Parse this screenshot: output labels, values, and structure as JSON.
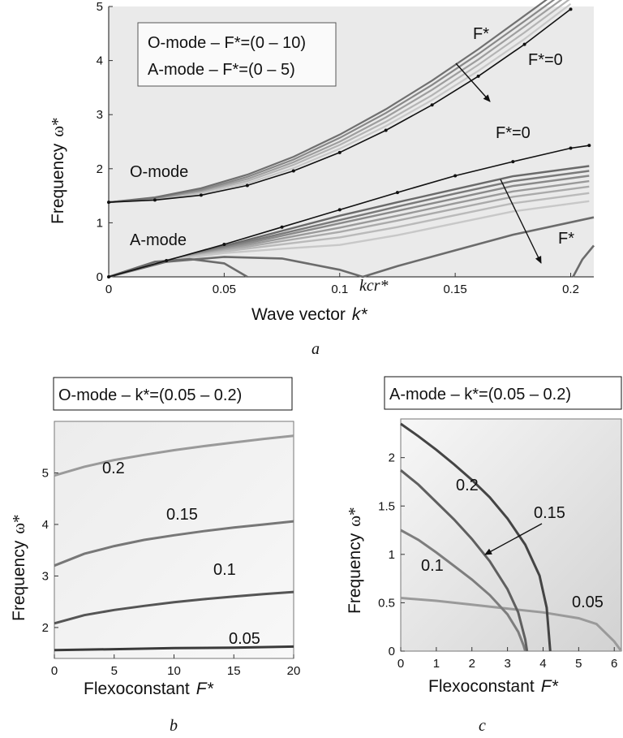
{
  "chart_data": [
    {
      "type": "line",
      "panel": "a",
      "caption": "a",
      "xlabel": "Wave vector",
      "xlabel_sym": "k*",
      "ylabel": "Frequency",
      "ylabel_sym": "ω*",
      "xlim": [
        0,
        0.21
      ],
      "ylim": [
        0,
        5
      ],
      "xticks": [
        "0",
        "0.05",
        "0.1",
        "0.15",
        "0.2"
      ],
      "xtick_values": [
        0,
        0.05,
        0.1,
        0.15,
        0.2
      ],
      "yticks": [
        "0",
        "1",
        "2",
        "3",
        "4",
        "5"
      ],
      "ytick_values": [
        0,
        1,
        2,
        3,
        4,
        5
      ],
      "grid": false,
      "legend_box": {
        "line1": "O-mode – F*=(0 – 10)",
        "line2": "A-mode – F*=(0 – 5)",
        "placement": "top-left"
      },
      "annotations": {
        "o_mode": "O-mode",
        "a_mode": "A-mode",
        "f_star_top": "F*",
        "f_zero_top": "F*=0",
        "f_zero_mid": "F*=0",
        "f_star_bottom": "F*",
        "k_cr": "kcr*"
      },
      "o_mode_F0": {
        "x": [
          0,
          0.02,
          0.04,
          0.06,
          0.08,
          0.1,
          0.12,
          0.14,
          0.16,
          0.18,
          0.2
        ],
        "y": [
          1.38,
          1.42,
          1.51,
          1.69,
          1.96,
          2.3,
          2.71,
          3.18,
          3.71,
          4.3,
          4.95
        ]
      },
      "o_mode_F_family": {
        "F": [
          2,
          4,
          6,
          8,
          10
        ],
        "x": [
          0,
          0.02,
          0.04,
          0.06,
          0.08,
          0.1,
          0.12,
          0.14,
          0.16,
          0.18,
          0.2
        ],
        "y_by_F": [
          [
            1.38,
            1.43,
            1.54,
            1.73,
            2.01,
            2.37,
            2.79,
            3.27,
            3.81,
            4.4,
            5.05
          ],
          [
            1.38,
            1.44,
            1.57,
            1.77,
            2.07,
            2.44,
            2.87,
            3.36,
            3.92,
            4.52,
            5.15
          ],
          [
            1.38,
            1.45,
            1.59,
            1.81,
            2.12,
            2.5,
            2.95,
            3.46,
            4.02,
            4.63,
            5.25
          ],
          [
            1.38,
            1.46,
            1.61,
            1.85,
            2.17,
            2.57,
            3.03,
            3.55,
            4.12,
            4.73,
            5.35
          ],
          [
            1.38,
            1.47,
            1.64,
            1.89,
            2.22,
            2.63,
            3.1,
            3.63,
            4.21,
            4.83,
            5.45
          ]
        ]
      },
      "a_mode_F0": {
        "x": [
          0,
          0.025,
          0.05,
          0.075,
          0.1,
          0.125,
          0.15,
          0.175,
          0.2,
          0.208
        ],
        "y": [
          0,
          0.3,
          0.6,
          0.92,
          1.24,
          1.56,
          1.87,
          2.13,
          2.38,
          2.43
        ]
      },
      "a_mode_F_family": {
        "x": [
          0,
          0.025,
          0.05,
          0.075,
          0.1,
          0.125,
          0.15,
          0.175,
          0.208
        ],
        "y_by_F": [
          [
            0,
            0.3,
            0.57,
            0.85,
            1.13,
            1.38,
            1.62,
            1.86,
            2.05
          ],
          [
            0,
            0.3,
            0.55,
            0.8,
            1.05,
            1.3,
            1.54,
            1.77,
            1.96
          ],
          [
            0,
            0.3,
            0.53,
            0.76,
            0.99,
            1.22,
            1.45,
            1.68,
            1.87
          ],
          [
            0,
            0.3,
            0.51,
            0.71,
            0.91,
            1.13,
            1.36,
            1.58,
            1.77
          ],
          [
            0,
            0.3,
            0.49,
            0.66,
            0.83,
            1.04,
            1.26,
            1.48,
            1.67
          ],
          [
            0,
            0.3,
            0.47,
            0.6,
            0.73,
            0.92,
            1.14,
            1.36,
            1.55
          ],
          [
            0,
            0.3,
            0.44,
            0.52,
            0.59,
            0.77,
            0.99,
            1.21,
            1.4
          ]
        ]
      },
      "a_mode_branches": [
        {
          "x": [
            0,
            0.02,
            0.035,
            0.05,
            0.06
          ],
          "y": [
            0,
            0.28,
            0.33,
            0.25,
            0
          ]
        },
        {
          "x": [
            0,
            0.025,
            0.05,
            0.075,
            0.1,
            0.11,
            0.125,
            0.15,
            0.175,
            0.21
          ],
          "y": [
            0,
            0.28,
            0.37,
            0.34,
            0.13,
            0,
            0.2,
            0.49,
            0.78,
            1.1
          ]
        },
        {
          "x": [
            0.201,
            0.205,
            0.21
          ],
          "y": [
            0,
            0.32,
            0.58
          ]
        }
      ]
    },
    {
      "type": "line",
      "panel": "b",
      "caption": "b",
      "title": "O-mode – k*=(0.05 – 0.2)",
      "xlabel": "Flexoconstant",
      "xlabel_sym": "F*",
      "ylabel": "Frequency",
      "ylabel_sym": "ω*",
      "xlim": [
        0,
        20
      ],
      "ylim": [
        1.4,
        6
      ],
      "xticks": [
        "0",
        "5",
        "10",
        "15",
        "20"
      ],
      "xtick_values": [
        0,
        5,
        10,
        15,
        20
      ],
      "yticks": [
        "2",
        "3",
        "4",
        "5"
      ],
      "ytick_values": [
        2,
        3,
        4,
        5
      ],
      "grid": false,
      "series": [
        {
          "name": "0.05",
          "x": [
            0,
            5,
            10,
            15,
            20
          ],
          "y": [
            1.56,
            1.58,
            1.6,
            1.61,
            1.63
          ]
        },
        {
          "name": "0.1",
          "x": [
            0,
            2.5,
            5,
            7.5,
            10,
            12.5,
            15,
            17.5,
            20
          ],
          "y": [
            2.08,
            2.24,
            2.34,
            2.42,
            2.49,
            2.55,
            2.6,
            2.65,
            2.69
          ]
        },
        {
          "name": "0.15",
          "x": [
            0,
            2.5,
            5,
            7.5,
            10,
            12.5,
            15,
            17.5,
            20
          ],
          "y": [
            3.2,
            3.43,
            3.58,
            3.7,
            3.79,
            3.87,
            3.94,
            4.0,
            4.06
          ]
        },
        {
          "name": "0.2",
          "x": [
            0,
            2.5,
            5,
            7.5,
            10,
            12.5,
            15,
            17.5,
            20
          ],
          "y": [
            4.95,
            5.12,
            5.25,
            5.35,
            5.44,
            5.52,
            5.59,
            5.66,
            5.72
          ]
        }
      ]
    },
    {
      "type": "line",
      "panel": "c",
      "caption": "c",
      "title": "A-mode – k*=(0.05 – 0.2)",
      "xlabel": "Flexoconstant",
      "xlabel_sym": "F*",
      "ylabel": "Frequency",
      "ylabel_sym": "ω*",
      "xlim": [
        0,
        6.2
      ],
      "ylim": [
        0,
        2.4
      ],
      "xticks": [
        "0",
        "1",
        "2",
        "3",
        "4",
        "5",
        "6"
      ],
      "xtick_values": [
        0,
        1,
        2,
        3,
        4,
        5,
        6
      ],
      "yticks": [
        "0",
        "0.5",
        "1",
        "1.5",
        "2"
      ],
      "ytick_values": [
        0,
        0.5,
        1,
        1.5,
        2
      ],
      "grid": false,
      "series": [
        {
          "name": "0.05",
          "x": [
            0,
            1,
            2,
            3,
            4,
            5,
            5.5,
            6.0,
            6.2
          ],
          "y": [
            0.55,
            0.52,
            0.48,
            0.44,
            0.4,
            0.34,
            0.28,
            0.1,
            0.0
          ]
        },
        {
          "name": "0.1",
          "x": [
            0,
            0.5,
            1,
            1.5,
            2,
            2.5,
            3,
            3.3,
            3.45,
            3.5
          ],
          "y": [
            1.25,
            1.15,
            1.02,
            0.88,
            0.74,
            0.58,
            0.38,
            0.2,
            0.06,
            0.0
          ]
        },
        {
          "name": "0.15",
          "x": [
            0,
            0.5,
            1,
            1.5,
            2,
            2.5,
            3,
            3.3,
            3.5,
            3.55
          ],
          "y": [
            1.87,
            1.72,
            1.54,
            1.36,
            1.16,
            0.93,
            0.64,
            0.4,
            0.12,
            0.0
          ]
        },
        {
          "name": "0.2",
          "x": [
            0,
            0.5,
            1,
            1.5,
            2,
            2.5,
            3,
            3.5,
            3.9,
            4.1,
            4.2
          ],
          "y": [
            2.35,
            2.22,
            2.08,
            1.93,
            1.77,
            1.59,
            1.37,
            1.1,
            0.78,
            0.45,
            0.0
          ]
        }
      ],
      "annotations": {
        "arrow_label": "0.15"
      }
    }
  ]
}
